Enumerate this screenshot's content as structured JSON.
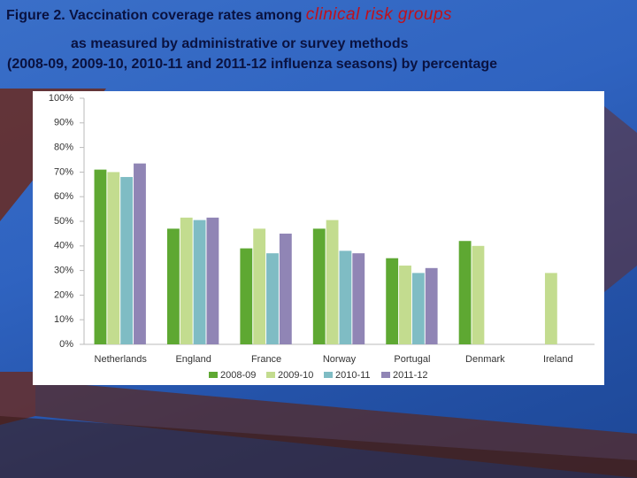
{
  "chart_data": {
    "type": "bar",
    "title": "Figure 2. Vaccination coverage rates among",
    "title_highlight": "clinical risk groups",
    "subtitle": [
      "as measured by administrative or survey methods",
      "(2008-09, 2009-10, 2010-11 and 2011-12 influenza seasons) by percentage"
    ],
    "categories": [
      "Netherlands",
      "England",
      "France",
      "Norway",
      "Portugal",
      "Denmark",
      "Ireland"
    ],
    "series": [
      {
        "name": "2008-09",
        "color": "#5ea832",
        "values": [
          71,
          47,
          39,
          47,
          35,
          42,
          null
        ]
      },
      {
        "name": "2009-10",
        "color": "#c3dc8f",
        "values": [
          70,
          51.5,
          47,
          50.5,
          32,
          40,
          29
        ]
      },
      {
        "name": "2010-11",
        "color": "#7fbcc4",
        "values": [
          68,
          50.5,
          37,
          38,
          29,
          null,
          null
        ]
      },
      {
        "name": "2011-12",
        "color": "#9085b5",
        "values": [
          73.5,
          51.5,
          45,
          37,
          31,
          null,
          null
        ]
      }
    ],
    "ylim": [
      0,
      100
    ],
    "yticks": [
      {
        "value": 0,
        "label": "0%"
      },
      {
        "value": 10,
        "label": "10%"
      },
      {
        "value": 20,
        "label": "20%"
      },
      {
        "value": 30,
        "label": "30%"
      },
      {
        "value": 40,
        "label": "40%"
      },
      {
        "value": 50,
        "label": "50%"
      },
      {
        "value": 60,
        "label": "60%"
      },
      {
        "value": 70,
        "label": "70%"
      },
      {
        "value": 80,
        "label": "80%"
      },
      {
        "value": 90,
        "label": "90%"
      },
      {
        "value": 100,
        "label": "100%"
      }
    ],
    "grid": false,
    "legend": "bottom"
  }
}
